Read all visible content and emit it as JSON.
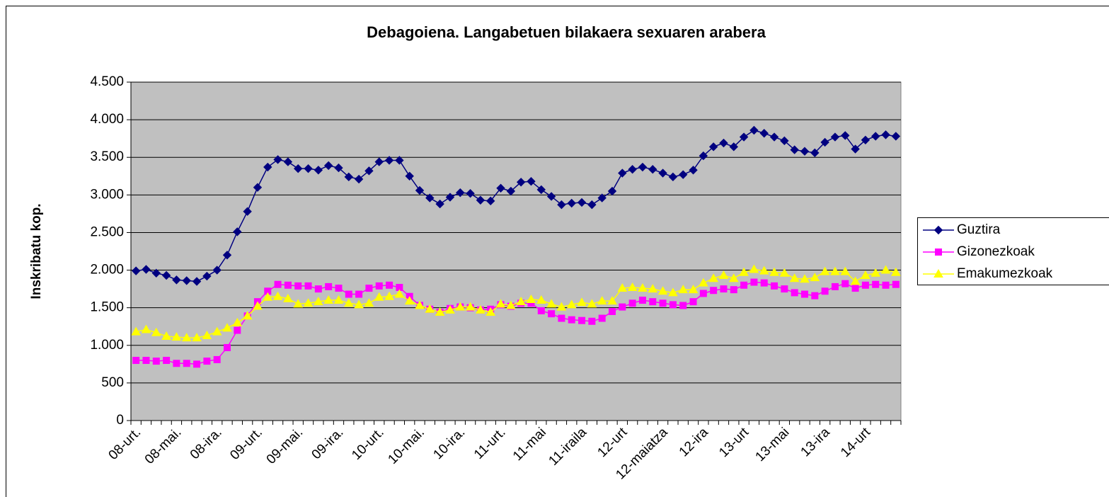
{
  "chart_data": {
    "type": "line",
    "title": "Debagoiena. Langabetuen bilakaera sexuaren arabera",
    "y_label": "Inskribatu kop.",
    "categories": [
      "08-urt.",
      null,
      null,
      null,
      "08-mai.",
      null,
      null,
      null,
      "08-ira.",
      null,
      null,
      null,
      "09-urt.",
      null,
      null,
      null,
      "09-mai.",
      null,
      null,
      null,
      "09-ira.",
      null,
      null,
      null,
      "10-urt.",
      null,
      null,
      null,
      "10-mai.",
      null,
      null,
      null,
      "10-ira.",
      null,
      null,
      null,
      "11-urt.",
      null,
      null,
      null,
      "11-mai",
      null,
      null,
      null,
      "11-iraila",
      null,
      null,
      null,
      "12-urt",
      null,
      null,
      null,
      "12-maiatza",
      null,
      null,
      null,
      "12-ira",
      null,
      null,
      null,
      "13-urt",
      null,
      null,
      null,
      "13-mai",
      null,
      null,
      null,
      "13-ira",
      null,
      null,
      null,
      "14-urt",
      null,
      null,
      null
    ],
    "series": [
      {
        "name": "Guztira",
        "color": "#000080",
        "marker": "diamond",
        "values": [
          1990,
          2010,
          1960,
          1930,
          1870,
          1860,
          1850,
          1920,
          2000,
          2200,
          2510,
          2780,
          3100,
          3370,
          3470,
          3440,
          3350,
          3350,
          3330,
          3390,
          3360,
          3240,
          3210,
          3320,
          3440,
          3460,
          3460,
          3250,
          3060,
          2960,
          2880,
          2970,
          3030,
          3020,
          2930,
          2920,
          3090,
          3050,
          3170,
          3180,
          3070,
          2980,
          2870,
          2890,
          2900,
          2870,
          2960,
          3050,
          3290,
          3340,
          3370,
          3340,
          3290,
          3240,
          3270,
          3330,
          3520,
          3640,
          3690,
          3640,
          3770,
          3860,
          3820,
          3770,
          3720,
          3600,
          3580,
          3560,
          3700,
          3770,
          3790,
          3610,
          3730,
          3780,
          3800,
          3780
        ]
      },
      {
        "name": "Gizonezkoak",
        "color": "#ff00ff",
        "marker": "square",
        "values": [
          800,
          800,
          790,
          800,
          760,
          760,
          750,
          790,
          810,
          970,
          1200,
          1390,
          1580,
          1720,
          1810,
          1800,
          1790,
          1790,
          1750,
          1780,
          1760,
          1680,
          1680,
          1760,
          1790,
          1800,
          1770,
          1650,
          1530,
          1480,
          1440,
          1490,
          1510,
          1500,
          1470,
          1480,
          1540,
          1520,
          1560,
          1560,
          1460,
          1420,
          1360,
          1340,
          1330,
          1320,
          1360,
          1450,
          1510,
          1560,
          1600,
          1580,
          1560,
          1540,
          1530,
          1580,
          1690,
          1730,
          1750,
          1740,
          1800,
          1840,
          1830,
          1790,
          1750,
          1700,
          1680,
          1660,
          1720,
          1780,
          1820,
          1760,
          1800,
          1810,
          1800,
          1810
        ]
      },
      {
        "name": "Emakumezkoak",
        "color": "#ffff00",
        "marker": "triangle",
        "values": [
          1180,
          1210,
          1170,
          1120,
          1110,
          1100,
          1100,
          1130,
          1180,
          1230,
          1300,
          1390,
          1520,
          1640,
          1650,
          1620,
          1550,
          1560,
          1580,
          1600,
          1600,
          1560,
          1540,
          1560,
          1640,
          1650,
          1680,
          1590,
          1530,
          1480,
          1440,
          1470,
          1510,
          1510,
          1470,
          1440,
          1550,
          1530,
          1580,
          1610,
          1600,
          1550,
          1510,
          1540,
          1570,
          1550,
          1590,
          1590,
          1760,
          1770,
          1760,
          1750,
          1720,
          1700,
          1740,
          1740,
          1830,
          1890,
          1930,
          1890,
          1970,
          2010,
          1990,
          1970,
          1960,
          1890,
          1880,
          1900,
          1980,
          1980,
          1980,
          1850,
          1930,
          1960,
          2000,
          1970
        ]
      }
    ],
    "ylim": [
      0,
      4500
    ],
    "yticks": [
      0,
      500,
      {
        "value": 1000,
        "label": "1.000"
      },
      {
        "value": 1500,
        "label": "1.500"
      },
      {
        "value": 2000,
        "label": "2.000"
      },
      {
        "value": 2500,
        "label": "2.500"
      },
      {
        "value": 3000,
        "label": "3.000"
      },
      {
        "value": 3500,
        "label": "3.500"
      },
      {
        "value": 4000,
        "label": "4.000"
      },
      {
        "value": 4500,
        "label": "4.500"
      }
    ],
    "grid": true,
    "plot_background": "#c0c0c0",
    "legend": "right"
  }
}
